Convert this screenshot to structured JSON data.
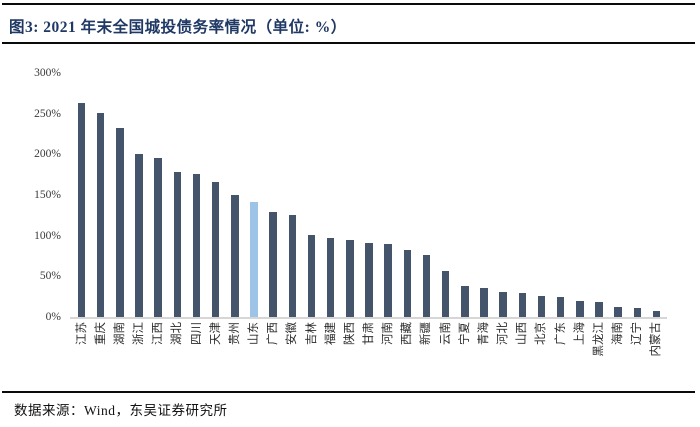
{
  "page": {
    "title": "图3: 2021 年末全国城投债务率情况（单位: %）",
    "source": "数据来源：Wind，东吴证券研究所"
  },
  "colors": {
    "title_text": "#1F3864",
    "bar": "#44546A",
    "bar_highlight": "#9DC3E6",
    "axis_line": "#D6D6D6",
    "rule": "#0A0A0A"
  },
  "chart_data": {
    "type": "bar",
    "title": "2021 年末全国城投债务率情况",
    "unit": "%",
    "categories": [
      "江苏",
      "重庆",
      "湖南",
      "浙江",
      "江西",
      "湖北",
      "四川",
      "天津",
      "贵州",
      "山东",
      "广西",
      "安徽",
      "吉林",
      "福建",
      "陕西",
      "甘肃",
      "河南",
      "西藏",
      "新疆",
      "云南",
      "宁夏",
      "青海",
      "河北",
      "山西",
      "北京",
      "广东",
      "上海",
      "黑龙江",
      "海南",
      "辽宁",
      "内蒙古"
    ],
    "values": [
      263,
      251,
      232,
      201,
      195,
      178,
      176,
      166,
      150,
      141,
      129,
      125,
      101,
      97,
      95,
      91,
      90,
      82,
      76,
      57,
      38,
      36,
      31,
      29,
      26,
      25,
      20,
      19,
      12,
      11,
      7
    ],
    "highlight_category": "山东",
    "highlight_index": 9,
    "xlabel": "",
    "ylabel": "",
    "ylim": [
      0,
      300
    ],
    "ytick_step": 50,
    "yticks": [
      "0%",
      "50%",
      "100%",
      "150%",
      "200%",
      "250%",
      "300%"
    ],
    "grid": false,
    "legend": false,
    "x_label_rotation_deg": -90
  }
}
